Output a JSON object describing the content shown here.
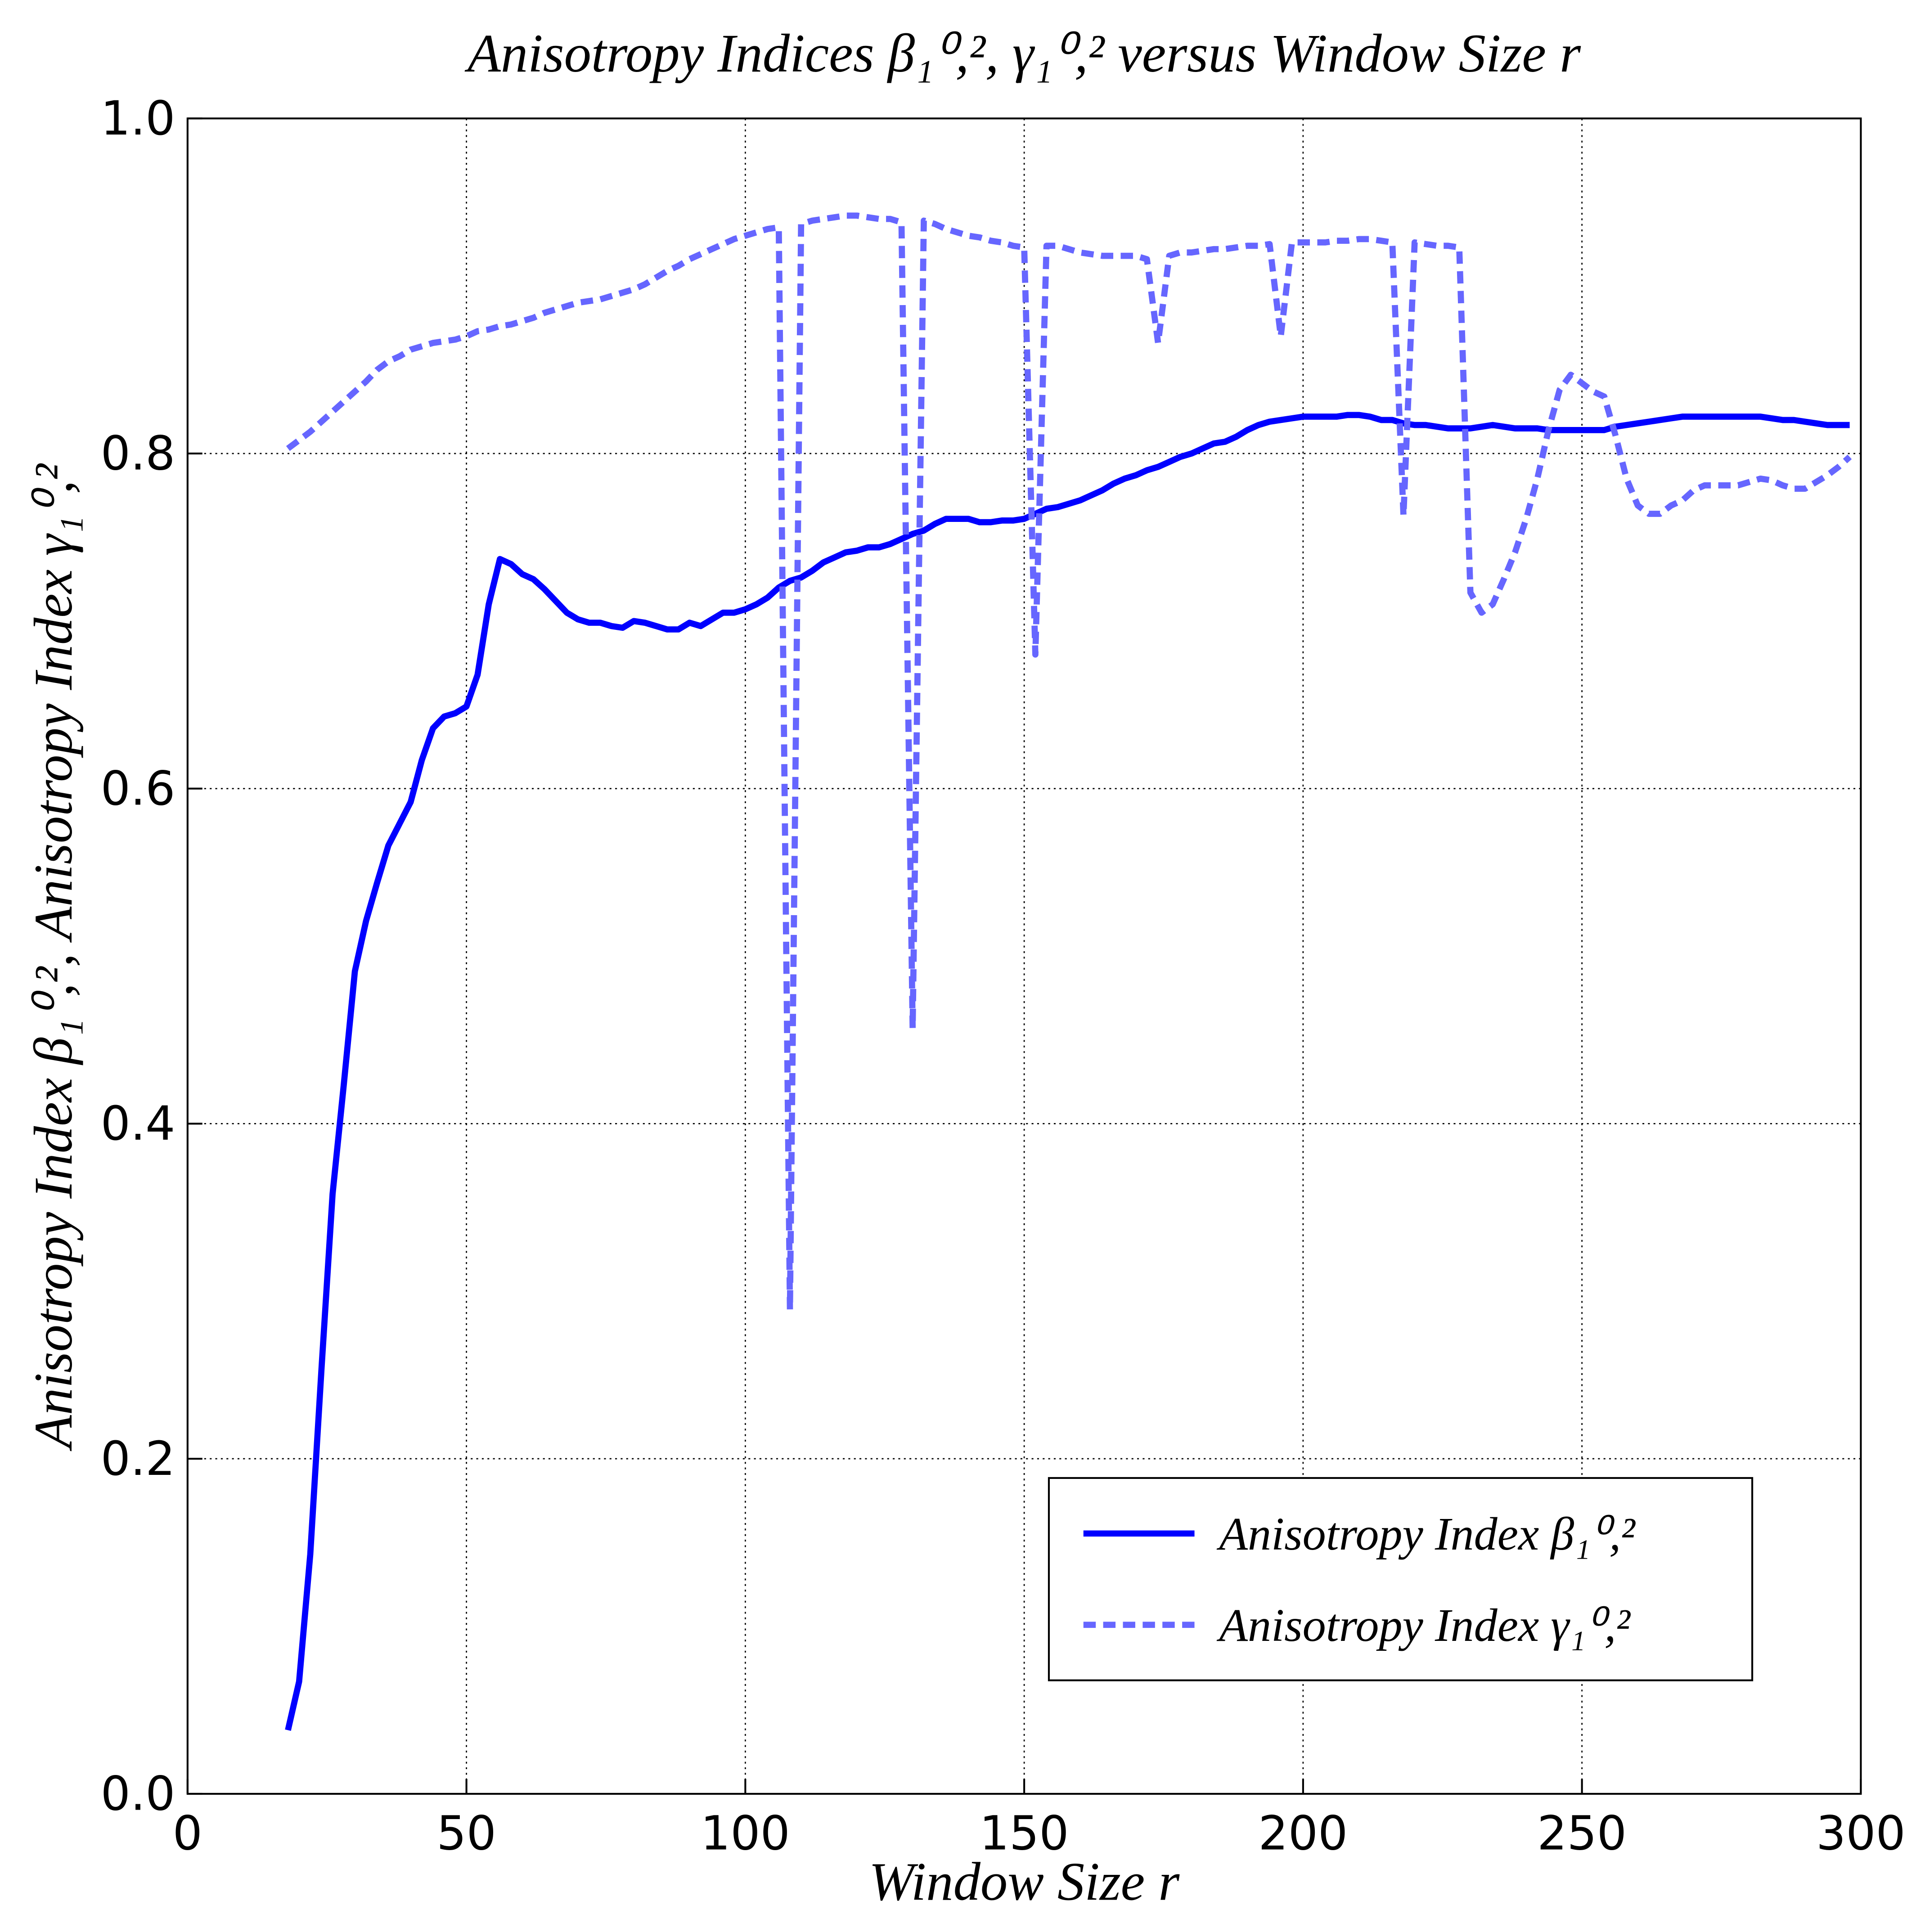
{
  "chart_data": {
    "type": "line",
    "title": "Anisotropy Indices β₁⁰,², γ₁⁰,² versus Window Size r",
    "x_label": "Window Size r",
    "y_label": "Anisotropy Index β₁⁰,², Anisotropy Index γ₁⁰,²",
    "x": [
      18,
      20,
      22,
      24,
      26,
      28,
      30,
      32,
      34,
      36,
      38,
      40,
      42,
      44,
      46,
      48,
      50,
      52,
      54,
      56,
      58,
      60,
      62,
      64,
      66,
      68,
      70,
      72,
      74,
      76,
      78,
      80,
      82,
      84,
      86,
      88,
      90,
      92,
      94,
      96,
      98,
      100,
      102,
      104,
      106,
      108,
      110,
      112,
      114,
      116,
      118,
      120,
      122,
      124,
      126,
      128,
      130,
      132,
      134,
      136,
      138,
      140,
      142,
      144,
      146,
      148,
      150,
      152,
      154,
      156,
      158,
      160,
      162,
      164,
      166,
      168,
      170,
      172,
      174,
      176,
      178,
      180,
      182,
      184,
      186,
      188,
      190,
      192,
      194,
      196,
      198,
      200,
      202,
      204,
      206,
      208,
      210,
      212,
      214,
      216,
      218,
      220,
      222,
      224,
      226,
      228,
      230,
      232,
      234,
      236,
      238,
      240,
      242,
      244,
      246,
      248,
      250,
      252,
      254,
      256,
      258,
      260,
      262,
      264,
      266,
      268,
      270,
      272,
      274,
      276,
      278,
      280,
      282,
      284,
      286,
      288,
      290,
      292,
      294,
      296,
      298
    ],
    "series": [
      {
        "name": "Anisotropy Index β₁⁰,²",
        "color": "#0000ff",
        "line_style": "solid",
        "values": [
          0.038,
          0.067,
          0.143,
          0.253,
          0.358,
          0.423,
          0.491,
          0.521,
          0.544,
          0.566,
          0.579,
          0.592,
          0.617,
          0.636,
          0.643,
          0.645,
          0.649,
          0.668,
          0.71,
          0.737,
          0.734,
          0.728,
          0.725,
          0.719,
          0.712,
          0.705,
          0.701,
          0.699,
          0.699,
          0.697,
          0.696,
          0.7,
          0.699,
          0.697,
          0.695,
          0.695,
          0.699,
          0.697,
          0.701,
          0.705,
          0.705,
          0.707,
          0.71,
          0.714,
          0.72,
          0.724,
          0.726,
          0.73,
          0.735,
          0.738,
          0.741,
          0.742,
          0.744,
          0.744,
          0.746,
          0.749,
          0.752,
          0.754,
          0.758,
          0.761,
          0.761,
          0.761,
          0.759,
          0.759,
          0.76,
          0.76,
          0.761,
          0.764,
          0.767,
          0.768,
          0.77,
          0.772,
          0.775,
          0.778,
          0.782,
          0.785,
          0.787,
          0.79,
          0.792,
          0.795,
          0.798,
          0.8,
          0.803,
          0.806,
          0.807,
          0.81,
          0.814,
          0.817,
          0.819,
          0.82,
          0.821,
          0.822,
          0.822,
          0.822,
          0.822,
          0.823,
          0.823,
          0.822,
          0.82,
          0.82,
          0.818,
          0.817,
          0.817,
          0.816,
          0.815,
          0.815,
          0.815,
          0.816,
          0.817,
          0.816,
          0.815,
          0.815,
          0.815,
          0.814,
          0.814,
          0.814,
          0.814,
          0.814,
          0.814,
          0.816,
          0.817,
          0.818,
          0.819,
          0.82,
          0.821,
          0.822,
          0.822,
          0.822,
          0.822,
          0.822,
          0.822,
          0.822,
          0.822,
          0.821,
          0.82,
          0.82,
          0.819,
          0.818,
          0.817,
          0.817,
          0.817
        ]
      },
      {
        "name": "Anisotropy Index γ₁⁰,²",
        "color": "#6666ff",
        "line_style": "dashed",
        "values": [
          0.803,
          0.808,
          0.813,
          0.819,
          0.825,
          0.831,
          0.837,
          0.843,
          0.85,
          0.855,
          0.858,
          0.862,
          0.864,
          0.866,
          0.867,
          0.868,
          0.87,
          0.873,
          0.874,
          0.876,
          0.877,
          0.879,
          0.881,
          0.884,
          0.886,
          0.888,
          0.89,
          0.891,
          0.892,
          0.894,
          0.896,
          0.898,
          0.901,
          0.905,
          0.909,
          0.912,
          0.916,
          0.919,
          0.922,
          0.925,
          0.928,
          0.93,
          0.932,
          0.934,
          0.935,
          0.289,
          0.937,
          0.939,
          0.94,
          0.941,
          0.942,
          0.942,
          0.941,
          0.94,
          0.94,
          0.938,
          0.457,
          0.939,
          0.937,
          0.934,
          0.932,
          0.93,
          0.929,
          0.927,
          0.926,
          0.924,
          0.923,
          0.68,
          0.924,
          0.924,
          0.922,
          0.92,
          0.919,
          0.918,
          0.918,
          0.918,
          0.918,
          0.916,
          0.866,
          0.918,
          0.92,
          0.92,
          0.921,
          0.922,
          0.922,
          0.923,
          0.924,
          0.924,
          0.925,
          0.87,
          0.926,
          0.926,
          0.926,
          0.926,
          0.927,
          0.927,
          0.928,
          0.928,
          0.927,
          0.926,
          0.763,
          0.926,
          0.925,
          0.924,
          0.924,
          0.923,
          0.717,
          0.705,
          0.71,
          0.725,
          0.741,
          0.761,
          0.785,
          0.814,
          0.838,
          0.847,
          0.842,
          0.837,
          0.834,
          0.811,
          0.785,
          0.769,
          0.764,
          0.764,
          0.769,
          0.772,
          0.778,
          0.781,
          0.781,
          0.781,
          0.781,
          0.783,
          0.785,
          0.784,
          0.781,
          0.779,
          0.779,
          0.783,
          0.787,
          0.792,
          0.798
        ]
      }
    ],
    "xlim": [
      0,
      300
    ],
    "xticks": [
      0,
      50,
      100,
      150,
      200,
      250,
      300
    ],
    "ylim": [
      0,
      1
    ],
    "yticks": [
      {
        "value": 0,
        "label": "0.0"
      },
      0.2,
      0.4,
      0.6,
      0.8,
      {
        "value": 1,
        "label": "1.0"
      }
    ],
    "grid": true,
    "legend": "lower right"
  }
}
